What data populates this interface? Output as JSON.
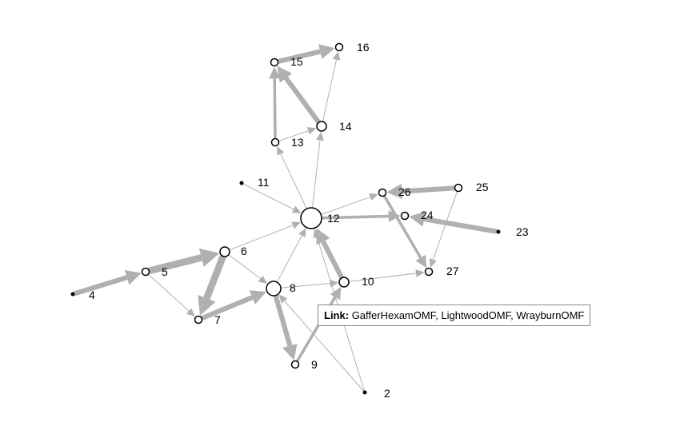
{
  "nodes": [
    {
      "id": "2",
      "label": "2",
      "kind": "dot"
    },
    {
      "id": "4",
      "label": "4",
      "kind": "dot"
    },
    {
      "id": "5",
      "label": "5",
      "kind": "small"
    },
    {
      "id": "6",
      "label": "6",
      "kind": "medium"
    },
    {
      "id": "7",
      "label": "7",
      "kind": "small"
    },
    {
      "id": "8",
      "label": "8",
      "kind": "large"
    },
    {
      "id": "9",
      "label": "9",
      "kind": "small"
    },
    {
      "id": "10",
      "label": "10",
      "kind": "medium"
    },
    {
      "id": "11",
      "label": "11",
      "kind": "dot"
    },
    {
      "id": "12",
      "label": "12",
      "kind": "hub"
    },
    {
      "id": "13",
      "label": "13",
      "kind": "small"
    },
    {
      "id": "14",
      "label": "14",
      "kind": "medium"
    },
    {
      "id": "15",
      "label": "15",
      "kind": "small"
    },
    {
      "id": "16",
      "label": "16",
      "kind": "small"
    },
    {
      "id": "23",
      "label": "23",
      "kind": "dot"
    },
    {
      "id": "24",
      "label": "24",
      "kind": "small"
    },
    {
      "id": "25",
      "label": "25",
      "kind": "small"
    },
    {
      "id": "26",
      "label": "26",
      "kind": "small"
    },
    {
      "id": "27",
      "label": "27",
      "kind": "small"
    }
  ],
  "links": [
    {
      "source": "4",
      "target": "5",
      "weight": 3
    },
    {
      "source": "5",
      "target": "6",
      "weight": 4
    },
    {
      "source": "5",
      "target": "7",
      "weight": 1
    },
    {
      "source": "6",
      "target": "7",
      "weight": 4
    },
    {
      "source": "7",
      "target": "8",
      "weight": 3
    },
    {
      "source": "6",
      "target": "8",
      "weight": 1
    },
    {
      "source": "6",
      "target": "12",
      "weight": 1
    },
    {
      "source": "8",
      "target": "9",
      "weight": 3
    },
    {
      "source": "9",
      "target": "10",
      "weight": 2
    },
    {
      "source": "8",
      "target": "10",
      "weight": 1
    },
    {
      "source": "8",
      "target": "12",
      "weight": 1
    },
    {
      "source": "10",
      "target": "12",
      "weight": 3
    },
    {
      "source": "10",
      "target": "27",
      "weight": 1
    },
    {
      "source": "2",
      "target": "8",
      "weight": 1
    },
    {
      "source": "2",
      "target": "12",
      "weight": 1
    },
    {
      "source": "11",
      "target": "12",
      "weight": 1
    },
    {
      "source": "12",
      "target": "13",
      "weight": 1
    },
    {
      "source": "12",
      "target": "14",
      "weight": 1
    },
    {
      "source": "12",
      "target": "26",
      "weight": 1
    },
    {
      "source": "12",
      "target": "24",
      "weight": 2
    },
    {
      "source": "13",
      "target": "14",
      "weight": 1
    },
    {
      "source": "13",
      "target": "15",
      "weight": 2
    },
    {
      "source": "14",
      "target": "15",
      "weight": 3
    },
    {
      "source": "14",
      "target": "16",
      "weight": 1
    },
    {
      "source": "15",
      "target": "16",
      "weight": 3
    },
    {
      "source": "25",
      "target": "26",
      "weight": 3
    },
    {
      "source": "25",
      "target": "27",
      "weight": 1
    },
    {
      "source": "26",
      "target": "27",
      "weight": 2
    },
    {
      "source": "23",
      "target": "24",
      "weight": 3
    }
  ],
  "tooltip": {
    "title": "Link:",
    "text": "GafferHexamOMF, LightwoodOMF, WrayburnOMF"
  },
  "colors": {
    "edge": "#b0b0b0",
    "node_stroke": "#000000",
    "node_fill": "#ffffff"
  }
}
